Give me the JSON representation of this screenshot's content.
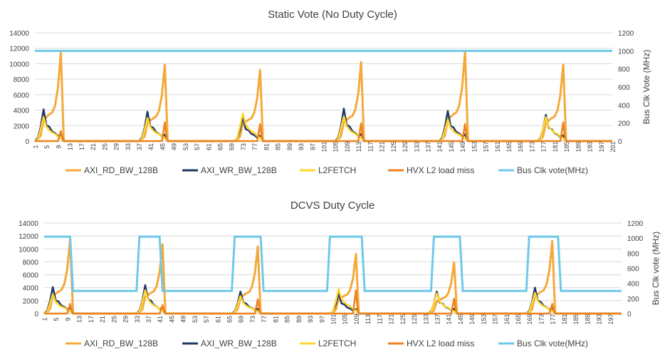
{
  "chart_data": [
    {
      "type": "line",
      "title": "Static Vote (No Duty Cycle)",
      "y2label": "Bus Clk Vote (MHz)",
      "ylim": [
        0,
        14000
      ],
      "y2lim": [
        0,
        1200
      ],
      "yticks": [
        "0",
        "2000",
        "4000",
        "6000",
        "8000",
        "10000",
        "12000",
        "14000"
      ],
      "y2ticks": [
        "0",
        "200",
        "400",
        "600",
        "800",
        "1000",
        "1200"
      ],
      "xlim": [
        1,
        201
      ],
      "xticks": [
        1,
        5,
        9,
        13,
        17,
        21,
        25,
        29,
        33,
        37,
        41,
        45,
        49,
        53,
        57,
        61,
        65,
        69,
        73,
        77,
        81,
        85,
        89,
        93,
        97,
        101,
        105,
        109,
        113,
        117,
        121,
        125,
        129,
        133,
        137,
        141,
        145,
        149,
        153,
        157,
        161,
        165,
        169,
        173,
        177,
        181,
        185,
        189,
        193,
        197,
        201
      ],
      "peaks": [
        1,
        37,
        70,
        105,
        141,
        175
      ],
      "peak_values": {
        "AXI_RD_BW_128B": [
          11500,
          9900,
          9200,
          10200,
          11600,
          9900
        ],
        "AXI_WR_BW_128B": [
          4100,
          3800,
          3100,
          4200,
          3900,
          3400
        ],
        "L2FETCH": [
          3100,
          3000,
          3600,
          3200,
          2800,
          3100
        ],
        "HVX L2 load miss": [
          1300,
          2400,
          2200,
          2300,
          2200,
          2400
        ]
      },
      "bus_clk_vote": {
        "value": 1000
      },
      "series": [
        {
          "name": "AXI_RD_BW_128B",
          "color": "#F5A93A",
          "axis": "left"
        },
        {
          "name": "AXI_WR_BW_128B",
          "color": "#1F3864",
          "axis": "left"
        },
        {
          "name": "L2FETCH",
          "color": "#FFD62F",
          "axis": "left"
        },
        {
          "name": "HVX L2 load miss",
          "color": "#F0821F",
          "axis": "left"
        },
        {
          "name": "Bus Clk vote(MHz)",
          "color": "#6FC9E8",
          "axis": "right"
        }
      ]
    },
    {
      "type": "line",
      "title": "DCVS Duty Cycle",
      "y2label": "Bus Clk vote (MHz)",
      "ylim": [
        0,
        14000
      ],
      "y2lim": [
        0,
        1200
      ],
      "yticks": [
        "0",
        "2000",
        "4000",
        "6000",
        "8000",
        "10000",
        "12000",
        "14000"
      ],
      "y2ticks": [
        "0",
        "200",
        "400",
        "600",
        "800",
        "1000",
        "1200"
      ],
      "xlim": [
        1,
        201
      ],
      "xticks": [
        1,
        5,
        9,
        13,
        17,
        21,
        25,
        29,
        33,
        37,
        41,
        45,
        49,
        53,
        57,
        61,
        65,
        69,
        73,
        77,
        81,
        85,
        89,
        93,
        97,
        101,
        105,
        109,
        113,
        117,
        121,
        125,
        129,
        133,
        137,
        141,
        145,
        149,
        153,
        157,
        161,
        165,
        169,
        173,
        177,
        181,
        185,
        189,
        193,
        197
      ],
      "peaks": [
        1,
        33,
        66,
        100,
        134,
        168
      ],
      "peak_values": {
        "AXI_RD_BW_128B": [
          11400,
          10700,
          10400,
          9200,
          7900,
          11200
        ],
        "AXI_WR_BW_128B": [
          4100,
          4400,
          3400,
          3100,
          3400,
          4000
        ],
        "L2FETCH": [
          3000,
          3600,
          2700,
          3800,
          3100,
          3200
        ],
        "HVX L2 load miss": [
          1500,
          1300,
          2200,
          3600,
          2300,
          1500
        ]
      },
      "bus_clk_vote": {
        "high": 1020,
        "low": 300,
        "segments": [
          [
            1,
            10,
            "high"
          ],
          [
            11,
            33,
            "low"
          ],
          [
            34,
            41,
            "high"
          ],
          [
            42,
            66,
            "low"
          ],
          [
            67,
            76,
            "high"
          ],
          [
            77,
            99,
            "low"
          ],
          [
            100,
            111,
            "high"
          ],
          [
            112,
            135,
            "low"
          ],
          [
            136,
            145,
            "high"
          ],
          [
            146,
            168,
            "low"
          ],
          [
            169,
            179,
            "high"
          ],
          [
            180,
            201,
            "low"
          ]
        ]
      },
      "series": [
        {
          "name": "AXI_RD_BW_128B",
          "color": "#F5A93A",
          "axis": "left"
        },
        {
          "name": "AXI_WR_BW_128B",
          "color": "#1F3864",
          "axis": "left"
        },
        {
          "name": "L2FETCH",
          "color": "#FFD62F",
          "axis": "left"
        },
        {
          "name": "HVX L2 load miss",
          "color": "#F0821F",
          "axis": "left"
        },
        {
          "name": "Bus Clk vote(MHz)",
          "color": "#6FC9E8",
          "axis": "right"
        }
      ]
    }
  ]
}
